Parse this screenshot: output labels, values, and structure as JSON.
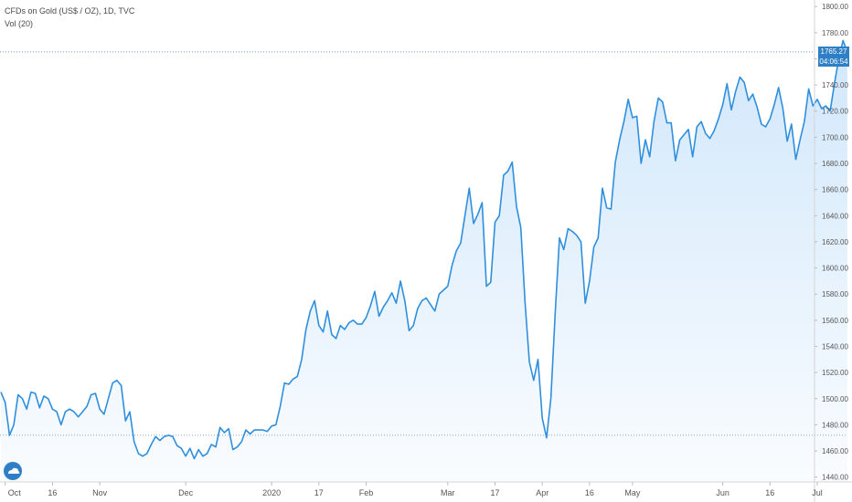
{
  "header": {
    "symbol_line": "CFDs on Gold (US$ / OZ), 1D, TVC",
    "indicator_line": "Vol (20)"
  },
  "price_tag": {
    "value": "1765.27",
    "countdown": "04:06:54"
  },
  "colors": {
    "line": "#2f8fdd",
    "fill": "#cfe6fb",
    "price_line": "#2f7fc6",
    "bg": "#ffffff"
  },
  "chart_data": {
    "type": "area",
    "title": "",
    "xlabel": "",
    "ylabel": "",
    "ylim": [
      1430,
      1805
    ],
    "y_ticks": [
      1440,
      1460,
      1480,
      1500,
      1520,
      1540,
      1560,
      1580,
      1600,
      1620,
      1640,
      1660,
      1680,
      1700,
      1720,
      1740,
      1760,
      1780,
      1800
    ],
    "x_ticks": [
      {
        "label": "Oct",
        "index": 1
      },
      {
        "label": "16",
        "index": 12
      },
      {
        "label": "Nov",
        "index": 23
      },
      {
        "label": "Dec",
        "index": 43
      },
      {
        "label": "2020",
        "index": 63
      },
      {
        "label": "17",
        "index": 74
      },
      {
        "label": "Feb",
        "index": 85
      },
      {
        "label": "Mar",
        "index": 104
      },
      {
        "label": "17",
        "index": 115
      },
      {
        "label": "Apr",
        "index": 126
      },
      {
        "label": "16",
        "index": 137
      },
      {
        "label": "May",
        "index": 147
      },
      {
        "label": "Jun",
        "index": 168
      },
      {
        "label": "16",
        "index": 179
      },
      {
        "label": "Jul",
        "index": 190
      }
    ],
    "reference_line": 1472,
    "last_price": 1765.27,
    "series": [
      {
        "values": [
          1505,
          1497,
          1472,
          1480,
          1503,
          1500,
          1492,
          1505,
          1504,
          1493,
          1502,
          1500,
          1492,
          1490,
          1480,
          1490,
          1492,
          1490,
          1486,
          1490,
          1494,
          1503,
          1504,
          1492,
          1488,
          1500,
          1512,
          1514,
          1510,
          1483,
          1490,
          1467,
          1458,
          1456,
          1458,
          1465,
          1471,
          1468,
          1471,
          1472,
          1471,
          1464,
          1462,
          1456,
          1462,
          1454,
          1461,
          1456,
          1458,
          1465,
          1463,
          1478,
          1474,
          1477,
          1461,
          1463,
          1467,
          1476,
          1473,
          1476,
          1476,
          1476,
          1475,
          1479,
          1480,
          1494,
          1512,
          1511,
          1515,
          1517,
          1530,
          1553,
          1567,
          1575,
          1556,
          1551,
          1567,
          1549,
          1546,
          1556,
          1553,
          1558,
          1560,
          1557,
          1557,
          1562,
          1571,
          1582,
          1563,
          1570,
          1575,
          1581,
          1573,
          1590,
          1575,
          1552,
          1556,
          1569,
          1575,
          1577,
          1572,
          1567,
          1580,
          1583,
          1586,
          1602,
          1613,
          1619,
          1640,
          1661,
          1634,
          1641,
          1650,
          1586,
          1589,
          1635,
          1640,
          1671,
          1674,
          1681,
          1647,
          1631,
          1573,
          1528,
          1514,
          1530,
          1485,
          1470,
          1500,
          1565,
          1623,
          1614,
          1630,
          1628,
          1625,
          1620,
          1573,
          1590,
          1616,
          1623,
          1661,
          1646,
          1645,
          1681,
          1698,
          1712,
          1729,
          1715,
          1716,
          1680,
          1698,
          1685,
          1712,
          1730,
          1727,
          1711,
          1711,
          1682,
          1698,
          1702,
          1706,
          1685,
          1708,
          1712,
          1703,
          1699,
          1705,
          1714,
          1725,
          1741,
          1721,
          1735,
          1746,
          1742,
          1728,
          1733,
          1723,
          1710,
          1708,
          1714,
          1725,
          1738,
          1722,
          1697,
          1710,
          1683,
          1698,
          1712,
          1737,
          1724,
          1729,
          1722,
          1724,
          1720,
          1741,
          1760,
          1774,
          1765
        ]
      }
    ]
  }
}
